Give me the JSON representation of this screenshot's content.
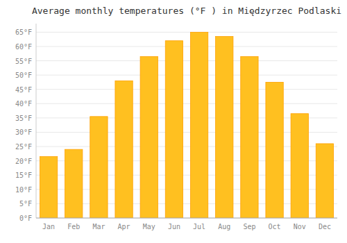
{
  "chart_data": {
    "type": "bar",
    "title": "Average monthly temperatures (°F ) in Międzyrzec Podlaski",
    "categories": [
      "Jan",
      "Feb",
      "Mar",
      "Apr",
      "May",
      "Jun",
      "Jul",
      "Aug",
      "Sep",
      "Oct",
      "Nov",
      "Dec"
    ],
    "values": [
      21.5,
      24.0,
      35.5,
      48.0,
      56.5,
      62.0,
      65.0,
      63.5,
      56.5,
      47.5,
      36.5,
      26.0
    ],
    "color": "#FFC020",
    "ylim": [
      0,
      68
    ],
    "yticks": [
      {
        "value": 0,
        "label": "0°F"
      },
      {
        "value": 5,
        "label": "5°F"
      },
      {
        "value": 10,
        "label": "10°F"
      },
      {
        "value": 15,
        "label": "15°F"
      },
      {
        "value": 20,
        "label": "20°F"
      },
      {
        "value": 25,
        "label": "25°F"
      },
      {
        "value": 30,
        "label": "30°F"
      },
      {
        "value": 35,
        "label": "35°F"
      },
      {
        "value": 40,
        "label": "40°F"
      },
      {
        "value": 45,
        "label": "45°F"
      },
      {
        "value": 50,
        "label": "50°F"
      },
      {
        "value": 55,
        "label": "55°F"
      },
      {
        "value": 60,
        "label": "60°F"
      },
      {
        "value": 65,
        "label": "65°F"
      }
    ],
    "grid": true
  }
}
